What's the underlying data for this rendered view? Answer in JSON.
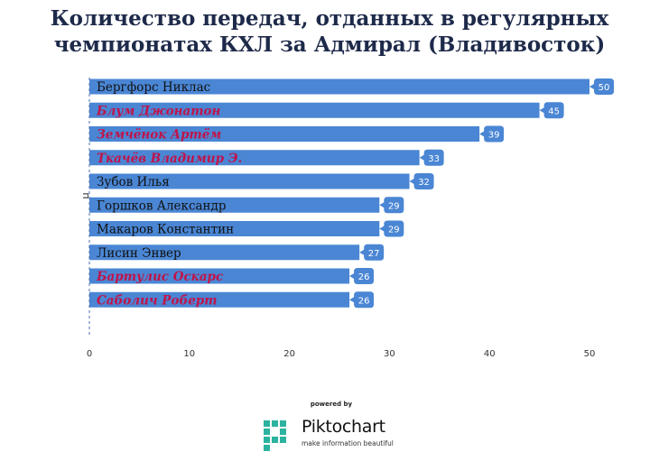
{
  "title": "Количество передач, отданных в регулярных чемпионатах КХЛ за Адмирал (Владивосток)",
  "footer": {
    "powered_by": "powered by",
    "brand": "Piktochart",
    "tagline": "make information beautiful"
  },
  "chart_data": {
    "type": "bar",
    "orientation": "horizontal",
    "ylabel": "п",
    "xlim": [
      0,
      50
    ],
    "xticks": [
      0,
      10,
      20,
      30,
      40,
      50
    ],
    "grid": false,
    "colors": {
      "bar": "#4a86d4",
      "label_badge": "#4a86d4",
      "highlight_text": "#c0134a",
      "normal_text": "#111111"
    },
    "categories": [
      "Бергфорс Никлас",
      "Блум Джонатон",
      "Земчёнок Артём",
      "Ткачёв Владимир Э.",
      "Зубов Илья",
      "Горшков Александр",
      "Макаров Константин",
      "Лисин Энвер",
      "Бартулис Оскарс",
      "Саболич Роберт"
    ],
    "values": [
      50,
      45,
      39,
      33,
      32,
      29,
      29,
      27,
      26,
      26
    ],
    "highlighted": [
      false,
      true,
      true,
      true,
      false,
      false,
      false,
      false,
      true,
      true
    ]
  }
}
